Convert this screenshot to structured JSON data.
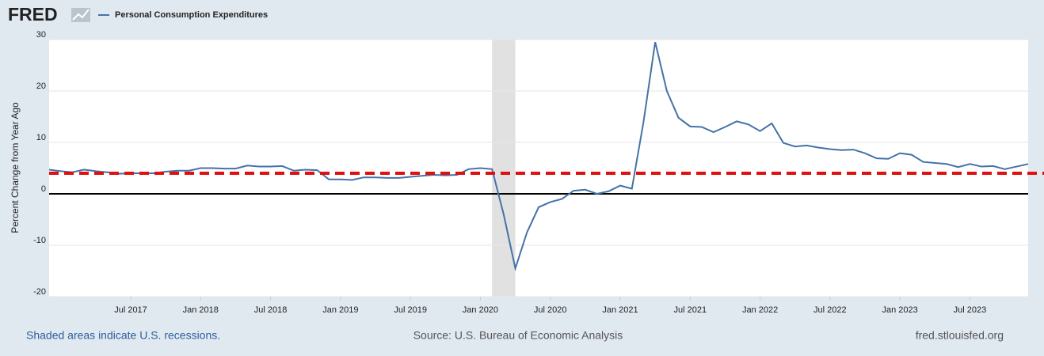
{
  "logo": "FRED",
  "chart_data": {
    "type": "line",
    "y_label": "Percent Change from Year Ago",
    "series": [
      {
        "name": "Personal Consumption Expenditures",
        "color": "#4572a7",
        "values": [
          4.7,
          4.4,
          4.2,
          4.7,
          4.4,
          4.2,
          3.9,
          4.0,
          4.0,
          4.0,
          4.3,
          4.5,
          4.5,
          5.0,
          5.0,
          4.9,
          4.9,
          5.5,
          5.3,
          5.3,
          5.4,
          4.5,
          4.7,
          4.6,
          2.8,
          2.8,
          2.7,
          3.2,
          3.2,
          3.1,
          3.1,
          3.3,
          3.5,
          3.7,
          3.6,
          3.7,
          4.8,
          5.0,
          4.8,
          -4.0,
          -14.5,
          -7.5,
          -2.6,
          -1.6,
          -1.0,
          0.6,
          0.8,
          0.0,
          0.5,
          1.6,
          1.0,
          14.0,
          29.5,
          20.0,
          14.8,
          13.1,
          13.0,
          12.0,
          13.0,
          14.1,
          13.5,
          12.2,
          13.7,
          9.9,
          9.2,
          9.4,
          9.0,
          8.7,
          8.5,
          8.6,
          7.9,
          6.9,
          6.8,
          7.9,
          7.6,
          6.2,
          6.0,
          5.8,
          5.2,
          5.8,
          5.3,
          5.4,
          4.8,
          5.3,
          5.8
        ]
      }
    ],
    "x": [
      "2016-12",
      "2017-01",
      "2017-02",
      "2017-03",
      "2017-04",
      "2017-05",
      "2017-06",
      "2017-07",
      "2017-08",
      "2017-09",
      "2017-10",
      "2017-11",
      "2017-12",
      "2018-01",
      "2018-02",
      "2018-03",
      "2018-04",
      "2018-05",
      "2018-06",
      "2018-07",
      "2018-08",
      "2018-09",
      "2018-10",
      "2018-11",
      "2018-12",
      "2019-01",
      "2019-02",
      "2019-03",
      "2019-04",
      "2019-05",
      "2019-06",
      "2019-07",
      "2019-08",
      "2019-09",
      "2019-10",
      "2019-11",
      "2019-12",
      "2020-01",
      "2020-02",
      "2020-03",
      "2020-04",
      "2020-05",
      "2020-06",
      "2020-07",
      "2020-08",
      "2020-09",
      "2020-10",
      "2020-11",
      "2020-12",
      "2021-01",
      "2021-02",
      "2021-03",
      "2021-04",
      "2021-05",
      "2021-06",
      "2021-07",
      "2021-08",
      "2021-09",
      "2021-10",
      "2021-11",
      "2021-12",
      "2022-01",
      "2022-02",
      "2022-03",
      "2022-04",
      "2022-05",
      "2022-06",
      "2022-07",
      "2022-08",
      "2022-09",
      "2022-10",
      "2022-11",
      "2022-12",
      "2023-01",
      "2023-02",
      "2023-03",
      "2023-04",
      "2023-05",
      "2023-06",
      "2023-07",
      "2023-08",
      "2023-09",
      "2023-10",
      "2023-11",
      "2023-12"
    ],
    "xticks": [
      {
        "value": "2017-07",
        "label": "Jul 2017"
      },
      {
        "value": "2018-01",
        "label": "Jan 2018"
      },
      {
        "value": "2018-07",
        "label": "Jul 2018"
      },
      {
        "value": "2019-01",
        "label": "Jan 2019"
      },
      {
        "value": "2019-07",
        "label": "Jul 2019"
      },
      {
        "value": "2020-01",
        "label": "Jan 2020"
      },
      {
        "value": "2020-07",
        "label": "Jul 2020"
      },
      {
        "value": "2021-01",
        "label": "Jan 2021"
      },
      {
        "value": "2021-07",
        "label": "Jul 2021"
      },
      {
        "value": "2022-01",
        "label": "Jan 2022"
      },
      {
        "value": "2022-07",
        "label": "Jul 2022"
      },
      {
        "value": "2023-01",
        "label": "Jan 2023"
      },
      {
        "value": "2023-07",
        "label": "Jul 2023"
      }
    ],
    "ylim": [
      -20,
      30
    ],
    "yticks": [
      30,
      20,
      10,
      0,
      -10,
      -20
    ],
    "grid": true,
    "zero_line_color": "#000000",
    "recessions": [
      {
        "start": "2020-02",
        "end": "2020-04"
      }
    ],
    "reference_line": {
      "value": 4,
      "color": "#e01010"
    }
  },
  "footer": {
    "note": "Shaded areas indicate U.S. recessions.",
    "source": "Source: U.S. Bureau of Economic Analysis",
    "site": "fred.stlouisfed.org"
  }
}
